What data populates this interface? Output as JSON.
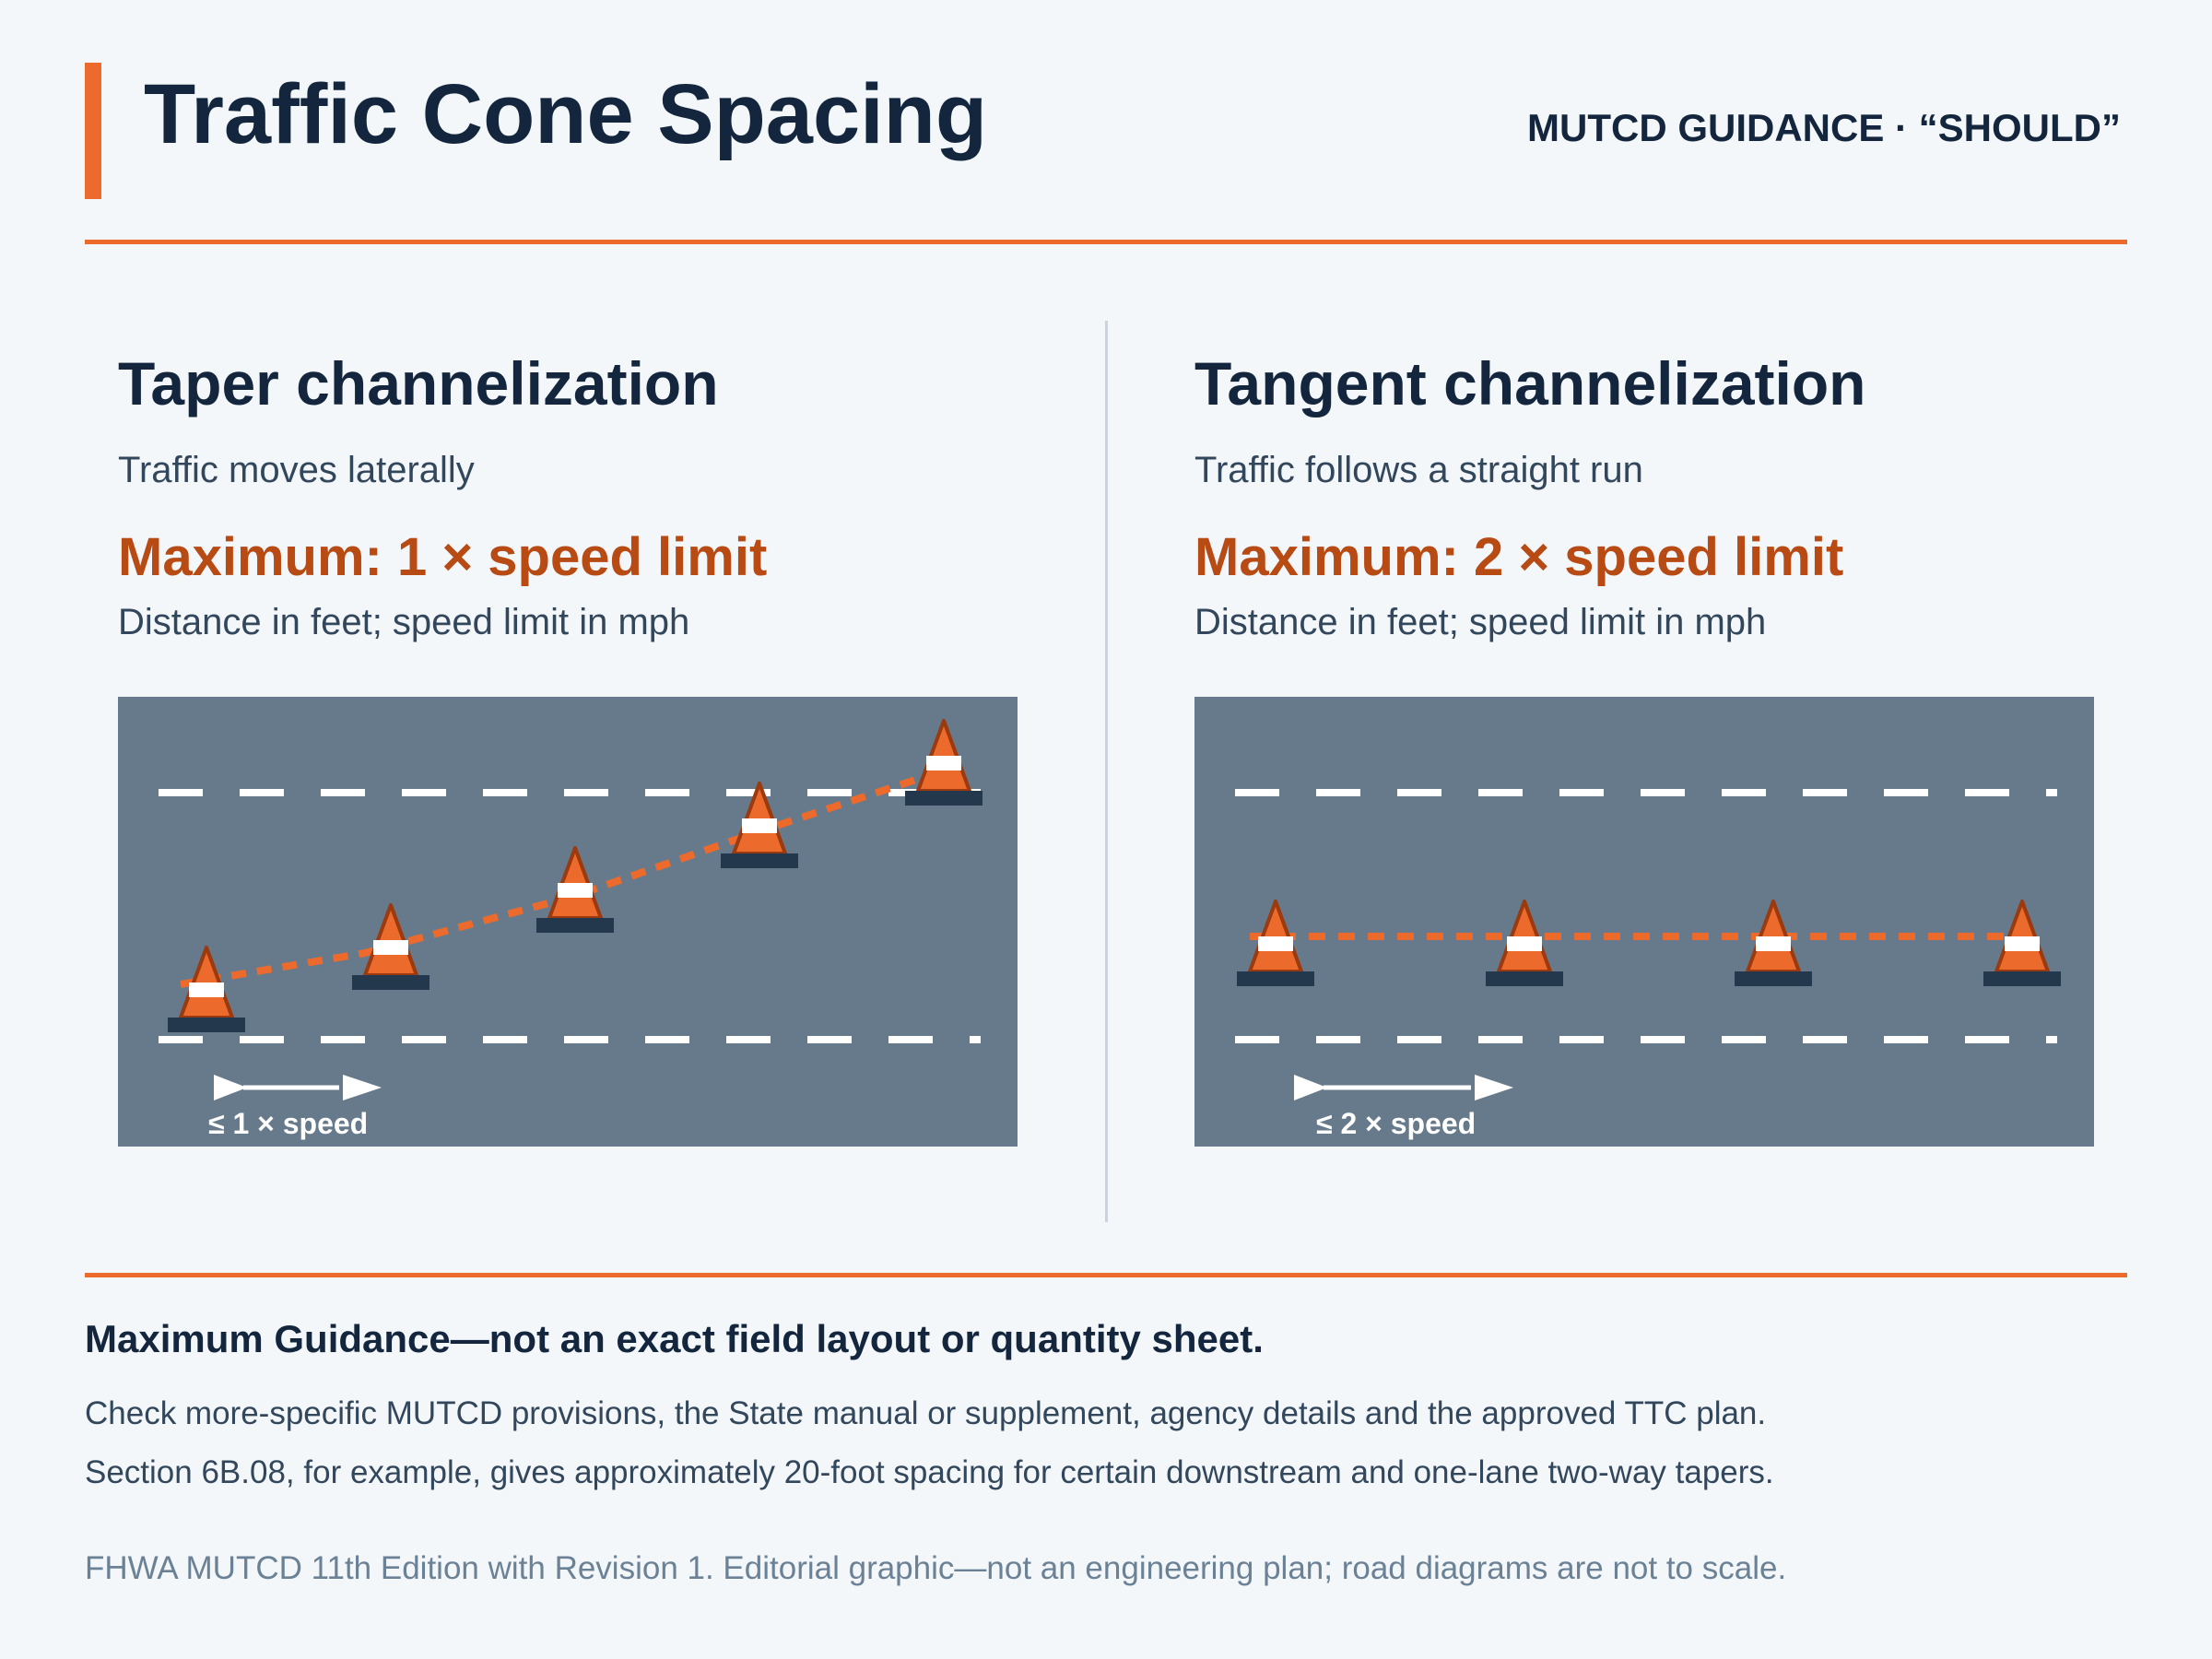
{
  "header": {
    "title": "Traffic Cone Spacing",
    "tag": "MUTCD GUIDANCE · “SHOULD”"
  },
  "panels": [
    {
      "title": "Taper channelization",
      "subtitle": "Traffic moves laterally",
      "maximum": "Maximum: 1 × speed limit",
      "units": "Distance in feet; speed limit in mph",
      "spacing_label": "≤ 1 × speed",
      "spacing_multiplier": 1,
      "cone_count": 5
    },
    {
      "title": "Tangent channelization",
      "subtitle": "Traffic follows a straight run",
      "maximum": "Maximum: 2 × speed limit",
      "units": "Distance in feet; speed limit in mph",
      "spacing_label": "≤ 2 × speed",
      "spacing_multiplier": 2,
      "cone_count": 4
    }
  ],
  "footer": {
    "heading": "Maximum Guidance—not an exact field layout or quantity sheet.",
    "notes": [
      "Check more-specific MUTCD provisions, the State manual or supplement, agency details and the approved TTC plan.",
      "Section 6B.08, for example, gives approximately 20-foot spacing for certain downstream and one-lane two-way tapers."
    ],
    "source": "FHWA MUTCD 11th Edition with Revision 1. Editorial graphic—not an engineering plan; road diagrams are not to scale."
  },
  "colors": {
    "accent": "#ec6a2c",
    "title_text": "#13263d",
    "maximum_text": "#b84a14",
    "road": "#677a8b",
    "cone_base": "#24384d"
  },
  "icons": {
    "cone": "traffic-cone-icon",
    "spacing_arrow": "double-arrow-icon"
  }
}
